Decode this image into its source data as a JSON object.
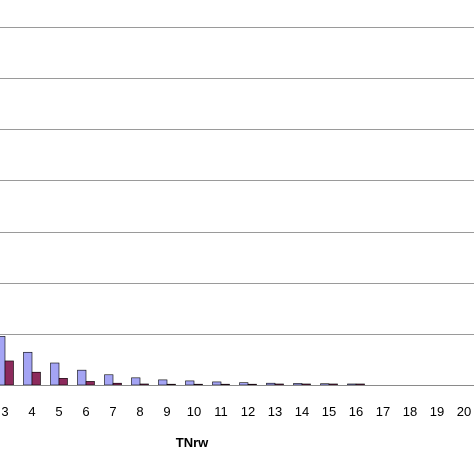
{
  "chart_data": {
    "type": "bar",
    "xlabel": "TNrw",
    "ylabel": "",
    "title": "",
    "categories": [
      "3",
      "4",
      "5",
      "6",
      "7",
      "8",
      "9",
      "10",
      "11",
      "12",
      "13",
      "14",
      "15",
      "16",
      "17",
      "18",
      "19",
      "20"
    ],
    "series": [
      {
        "color": "#a4a4f4",
        "values": [
          9.5,
          6.4,
          4.3,
          2.9,
          2.0,
          1.4,
          1.0,
          0.8,
          0.6,
          0.45,
          0.35,
          0.3,
          0.25,
          0.2,
          0,
          0,
          0,
          0
        ]
      },
      {
        "color": "#8c2a5c",
        "values": [
          4.7,
          2.5,
          1.3,
          0.7,
          0.35,
          0.2,
          0.1,
          0.05,
          0.03,
          0.02,
          0.2,
          0.2,
          0.2,
          0.2,
          0,
          0,
          0,
          0
        ]
      }
    ],
    "ylim": [
      0,
      70
    ],
    "ytick_step": 10,
    "grid": true,
    "legend": "none"
  }
}
